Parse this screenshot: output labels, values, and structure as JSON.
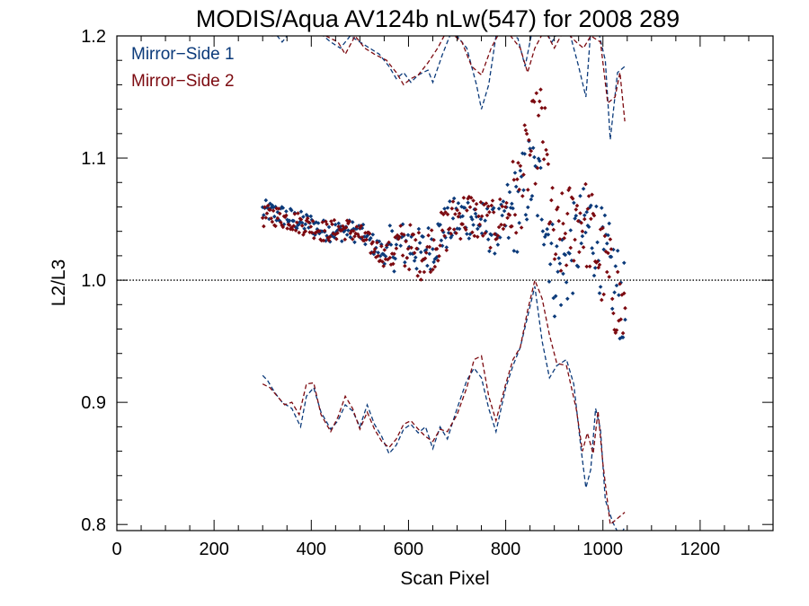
{
  "chart_data": {
    "type": "scatter",
    "title": "MODIS/Aqua AV124b nLw(547) for 2008 289",
    "xlabel": "Scan Pixel",
    "ylabel": "L2/L3",
    "xlim": [
      0,
      1350
    ],
    "ylim": [
      0.795,
      1.2
    ],
    "xticks": [
      0,
      200,
      400,
      600,
      800,
      1000,
      1200
    ],
    "xtick_labels": [
      "0",
      "200",
      "400",
      "600",
      "800",
      "1000",
      "1200"
    ],
    "yticks": [
      0.8,
      0.9,
      1.0,
      1.1,
      1.2
    ],
    "ytick_labels": [
      "0.8",
      "0.9",
      "1.0",
      "1.1",
      "1.2"
    ],
    "reference_line": 1.0,
    "legend_position": "top-left",
    "grid": false,
    "series": [
      {
        "name": "Mirror−Side 1",
        "color": "#0b3a7a",
        "mean": [
          [
            300,
            1.057
          ],
          [
            325,
            1.055
          ],
          [
            350,
            1.052
          ],
          [
            375,
            1.048
          ],
          [
            400,
            1.046
          ],
          [
            425,
            1.041
          ],
          [
            450,
            1.04
          ],
          [
            475,
            1.041
          ],
          [
            500,
            1.039
          ],
          [
            525,
            1.03
          ],
          [
            550,
            1.022
          ],
          [
            575,
            1.028
          ],
          [
            600,
            1.03
          ],
          [
            625,
            1.022
          ],
          [
            650,
            1.03
          ],
          [
            675,
            1.042
          ],
          [
            700,
            1.05
          ],
          [
            725,
            1.053
          ],
          [
            750,
            1.046
          ],
          [
            775,
            1.04
          ],
          [
            800,
            1.046
          ],
          [
            825,
            1.06
          ],
          [
            850,
            1.085
          ],
          [
            875,
            1.07
          ],
          [
            900,
            1.005
          ],
          [
            925,
            1.012
          ],
          [
            950,
            1.035
          ],
          [
            975,
            1.045
          ],
          [
            1000,
            1.02
          ],
          [
            1025,
            1.0
          ],
          [
            1045,
            0.975
          ]
        ],
        "upper_bound": [
          [
            320,
            1.205
          ],
          [
            340,
            1.195
          ],
          [
            360,
            1.205
          ],
          [
            380,
            1.2
          ],
          [
            400,
            1.21
          ],
          [
            425,
            1.2
          ],
          [
            440,
            1.195
          ],
          [
            460,
            1.19
          ],
          [
            480,
            1.2
          ],
          [
            500,
            1.195
          ],
          [
            520,
            1.19
          ],
          [
            540,
            1.185
          ],
          [
            560,
            1.175
          ],
          [
            575,
            1.165
          ],
          [
            590,
            1.17
          ],
          [
            605,
            1.162
          ],
          [
            620,
            1.168
          ],
          [
            640,
            1.172
          ],
          [
            650,
            1.162
          ],
          [
            670,
            1.185
          ],
          [
            690,
            1.205
          ],
          [
            720,
            1.19
          ],
          [
            740,
            1.16
          ],
          [
            750,
            1.14
          ],
          [
            765,
            1.16
          ],
          [
            780,
            1.2
          ],
          [
            800,
            1.205
          ],
          [
            825,
            1.198
          ],
          [
            840,
            1.175
          ],
          [
            855,
            1.205
          ],
          [
            880,
            1.205
          ],
          [
            895,
            1.195
          ],
          [
            910,
            1.205
          ],
          [
            930,
            1.205
          ],
          [
            950,
            1.175
          ],
          [
            965,
            1.15
          ],
          [
            975,
            1.205
          ],
          [
            990,
            1.205
          ],
          [
            1005,
            1.18
          ],
          [
            1015,
            1.115
          ],
          [
            1030,
            1.17
          ],
          [
            1045,
            1.175
          ]
        ],
        "lower_bound": [
          [
            300,
            0.922
          ],
          [
            310,
            0.918
          ],
          [
            325,
            0.908
          ],
          [
            340,
            0.9
          ],
          [
            360,
            0.895
          ],
          [
            378,
            0.88
          ],
          [
            390,
            0.905
          ],
          [
            405,
            0.912
          ],
          [
            420,
            0.892
          ],
          [
            440,
            0.878
          ],
          [
            455,
            0.885
          ],
          [
            470,
            0.898
          ],
          [
            485,
            0.893
          ],
          [
            500,
            0.88
          ],
          [
            515,
            0.898
          ],
          [
            530,
            0.882
          ],
          [
            545,
            0.872
          ],
          [
            560,
            0.858
          ],
          [
            575,
            0.865
          ],
          [
            590,
            0.878
          ],
          [
            605,
            0.882
          ],
          [
            620,
            0.875
          ],
          [
            635,
            0.88
          ],
          [
            650,
            0.862
          ],
          [
            665,
            0.88
          ],
          [
            680,
            0.87
          ],
          [
            700,
            0.895
          ],
          [
            720,
            0.918
          ],
          [
            735,
            0.928
          ],
          [
            750,
            0.92
          ],
          [
            765,
            0.895
          ],
          [
            780,
            0.876
          ],
          [
            800,
            0.912
          ],
          [
            815,
            0.93
          ],
          [
            830,
            0.945
          ],
          [
            845,
            0.97
          ],
          [
            860,
            0.995
          ],
          [
            875,
            0.95
          ],
          [
            890,
            0.92
          ],
          [
            905,
            0.93
          ],
          [
            925,
            0.935
          ],
          [
            940,
            0.915
          ],
          [
            955,
            0.862
          ],
          [
            965,
            0.83
          ],
          [
            975,
            0.845
          ],
          [
            985,
            0.895
          ],
          [
            995,
            0.878
          ],
          [
            1005,
            0.82
          ],
          [
            1020,
            0.802
          ],
          [
            1035,
            0.79
          ],
          [
            1045,
            0.798
          ]
        ]
      },
      {
        "name": "Mirror−Side 2",
        "color": "#7c0a10",
        "mean": [
          [
            300,
            1.052
          ],
          [
            325,
            1.053
          ],
          [
            350,
            1.05
          ],
          [
            375,
            1.047
          ],
          [
            400,
            1.044
          ],
          [
            425,
            1.04
          ],
          [
            450,
            1.041
          ],
          [
            475,
            1.042
          ],
          [
            500,
            1.037
          ],
          [
            525,
            1.028
          ],
          [
            550,
            1.02
          ],
          [
            575,
            1.027
          ],
          [
            600,
            1.028
          ],
          [
            625,
            1.02
          ],
          [
            650,
            1.028
          ],
          [
            675,
            1.04
          ],
          [
            700,
            1.052
          ],
          [
            725,
            1.055
          ],
          [
            750,
            1.048
          ],
          [
            775,
            1.045
          ],
          [
            800,
            1.055
          ],
          [
            825,
            1.07
          ],
          [
            850,
            1.105
          ],
          [
            875,
            1.13
          ],
          [
            900,
            1.025
          ],
          [
            925,
            1.04
          ],
          [
            950,
            1.055
          ],
          [
            975,
            1.04
          ],
          [
            1000,
            1.01
          ],
          [
            1025,
            0.99
          ],
          [
            1045,
            0.97
          ]
        ],
        "upper_bound": [
          [
            300,
            1.205
          ],
          [
            320,
            1.2
          ],
          [
            345,
            1.205
          ],
          [
            370,
            1.205
          ],
          [
            400,
            1.21
          ],
          [
            430,
            1.2
          ],
          [
            455,
            1.195
          ],
          [
            470,
            1.185
          ],
          [
            490,
            1.2
          ],
          [
            510,
            1.19
          ],
          [
            530,
            1.185
          ],
          [
            555,
            1.18
          ],
          [
            575,
            1.17
          ],
          [
            590,
            1.16
          ],
          [
            605,
            1.165
          ],
          [
            620,
            1.168
          ],
          [
            640,
            1.178
          ],
          [
            660,
            1.19
          ],
          [
            680,
            1.205
          ],
          [
            710,
            1.195
          ],
          [
            730,
            1.175
          ],
          [
            750,
            1.168
          ],
          [
            770,
            1.19
          ],
          [
            790,
            1.205
          ],
          [
            810,
            1.2
          ],
          [
            830,
            1.19
          ],
          [
            845,
            1.17
          ],
          [
            860,
            1.19
          ],
          [
            880,
            1.205
          ],
          [
            900,
            1.19
          ],
          [
            920,
            1.205
          ],
          [
            945,
            1.195
          ],
          [
            960,
            1.19
          ],
          [
            975,
            1.2
          ],
          [
            995,
            1.195
          ],
          [
            1010,
            1.145
          ],
          [
            1025,
            1.15
          ],
          [
            1035,
            1.17
          ],
          [
            1045,
            1.13
          ]
        ],
        "lower_bound": [
          [
            300,
            0.915
          ],
          [
            315,
            0.912
          ],
          [
            330,
            0.905
          ],
          [
            345,
            0.898
          ],
          [
            360,
            0.9
          ],
          [
            375,
            0.89
          ],
          [
            390,
            0.915
          ],
          [
            405,
            0.916
          ],
          [
            420,
            0.89
          ],
          [
            440,
            0.876
          ],
          [
            455,
            0.888
          ],
          [
            470,
            0.905
          ],
          [
            485,
            0.895
          ],
          [
            500,
            0.878
          ],
          [
            515,
            0.892
          ],
          [
            530,
            0.878
          ],
          [
            545,
            0.868
          ],
          [
            560,
            0.863
          ],
          [
            575,
            0.87
          ],
          [
            590,
            0.882
          ],
          [
            605,
            0.885
          ],
          [
            620,
            0.878
          ],
          [
            635,
            0.872
          ],
          [
            650,
            0.868
          ],
          [
            665,
            0.878
          ],
          [
            680,
            0.876
          ],
          [
            700,
            0.89
          ],
          [
            720,
            0.912
          ],
          [
            735,
            0.935
          ],
          [
            750,
            0.938
          ],
          [
            765,
            0.905
          ],
          [
            780,
            0.885
          ],
          [
            800,
            0.915
          ],
          [
            815,
            0.935
          ],
          [
            830,
            0.945
          ],
          [
            845,
            0.975
          ],
          [
            860,
            1.0
          ],
          [
            875,
            0.985
          ],
          [
            890,
            0.955
          ],
          [
            905,
            0.932
          ],
          [
            925,
            0.93
          ],
          [
            945,
            0.895
          ],
          [
            958,
            0.86
          ],
          [
            968,
            0.875
          ],
          [
            980,
            0.858
          ],
          [
            990,
            0.893
          ],
          [
            1000,
            0.85
          ],
          [
            1015,
            0.8
          ],
          [
            1030,
            0.805
          ],
          [
            1045,
            0.81
          ]
        ]
      }
    ]
  }
}
